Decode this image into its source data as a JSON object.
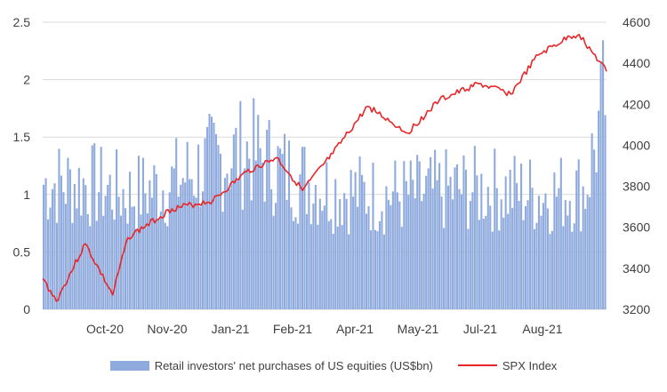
{
  "chart_data": {
    "type": "bar+line",
    "title": "",
    "xlabel": "",
    "ylabel": "",
    "x_ticks": [
      "Oct-20",
      "Nov-20",
      "Jan-21",
      "Feb-21",
      "Apr-21",
      "May-21",
      "Jul-21",
      "Aug-21"
    ],
    "x_range": [
      "2020-09-14",
      "2021-09-20"
    ],
    "y_left": {
      "ticks": [
        "0",
        "0.5",
        "1",
        "1.5",
        "2",
        "2.5"
      ],
      "range": [
        0,
        2.5
      ]
    },
    "y_right": {
      "ticks": [
        "3200",
        "3400",
        "3600",
        "3800",
        "4000",
        "4200",
        "4400",
        "4600"
      ],
      "range": [
        3200,
        4600
      ]
    },
    "grid": true,
    "legend_position": "bottom",
    "series": [
      {
        "name": "Retail investors' net purchases of US equities (US$bn)",
        "type": "bar",
        "axis": "left",
        "color": "#8faadc",
        "x": [
          "2020-09-14",
          "2020-10-12",
          "2020-11-10",
          "2020-12-07",
          "2021-01-04",
          "2021-01-27",
          "2021-02-22",
          "2021-03-22",
          "2021-04-19",
          "2021-05-17",
          "2021-06-14",
          "2021-07-12",
          "2021-08-09",
          "2021-09-07",
          "2021-09-20"
        ],
        "values": [
          1.15,
          1.15,
          1.05,
          1.15,
          1.35,
          1.45,
          1.25,
          1.1,
          1.05,
          1.05,
          1.1,
          1.1,
          1.05,
          1.1,
          1.95
        ]
      },
      {
        "name": "SPX Index",
        "type": "line",
        "axis": "right",
        "color": "#e8262a",
        "x": [
          "2020-09-14",
          "2020-09-23",
          "2020-10-12",
          "2020-10-30",
          "2020-11-09",
          "2020-12-08",
          "2021-01-04",
          "2021-01-26",
          "2021-02-15",
          "2021-03-04",
          "2021-03-24",
          "2021-04-16",
          "2021-05-12",
          "2021-06-02",
          "2021-06-28",
          "2021-07-19",
          "2021-08-06",
          "2021-08-27",
          "2021-09-02",
          "2021-09-10",
          "2021-09-20"
        ],
        "values": [
          3350,
          3240,
          3520,
          3270,
          3550,
          3690,
          3730,
          3870,
          3940,
          3780,
          3960,
          4190,
          4060,
          4220,
          4300,
          4250,
          4440,
          4530,
          4540,
          4460,
          4360
        ]
      }
    ]
  }
}
